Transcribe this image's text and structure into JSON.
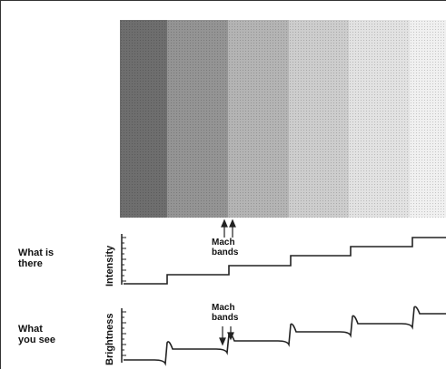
{
  "rows": {
    "top": {
      "label": "What is\nthere",
      "axis": "Intensity"
    },
    "bottom": {
      "label": "What\nyou see",
      "axis": "Brightness"
    }
  },
  "annotations": {
    "mach_top": "Mach\nbands",
    "mach_bottom": "Mach\nbands"
  },
  "band_colors": [
    "#6e6e6e",
    "#949494",
    "#b4b4b4",
    "#cdcdcd",
    "#e2e2e2",
    "#f0f0f0"
  ],
  "colors": {
    "line": "#222222",
    "text": "#111111"
  },
  "steps": {
    "count": 6,
    "intensity_levels": [
      1,
      2,
      3,
      4,
      5,
      6
    ],
    "mach_overshoot": true
  }
}
